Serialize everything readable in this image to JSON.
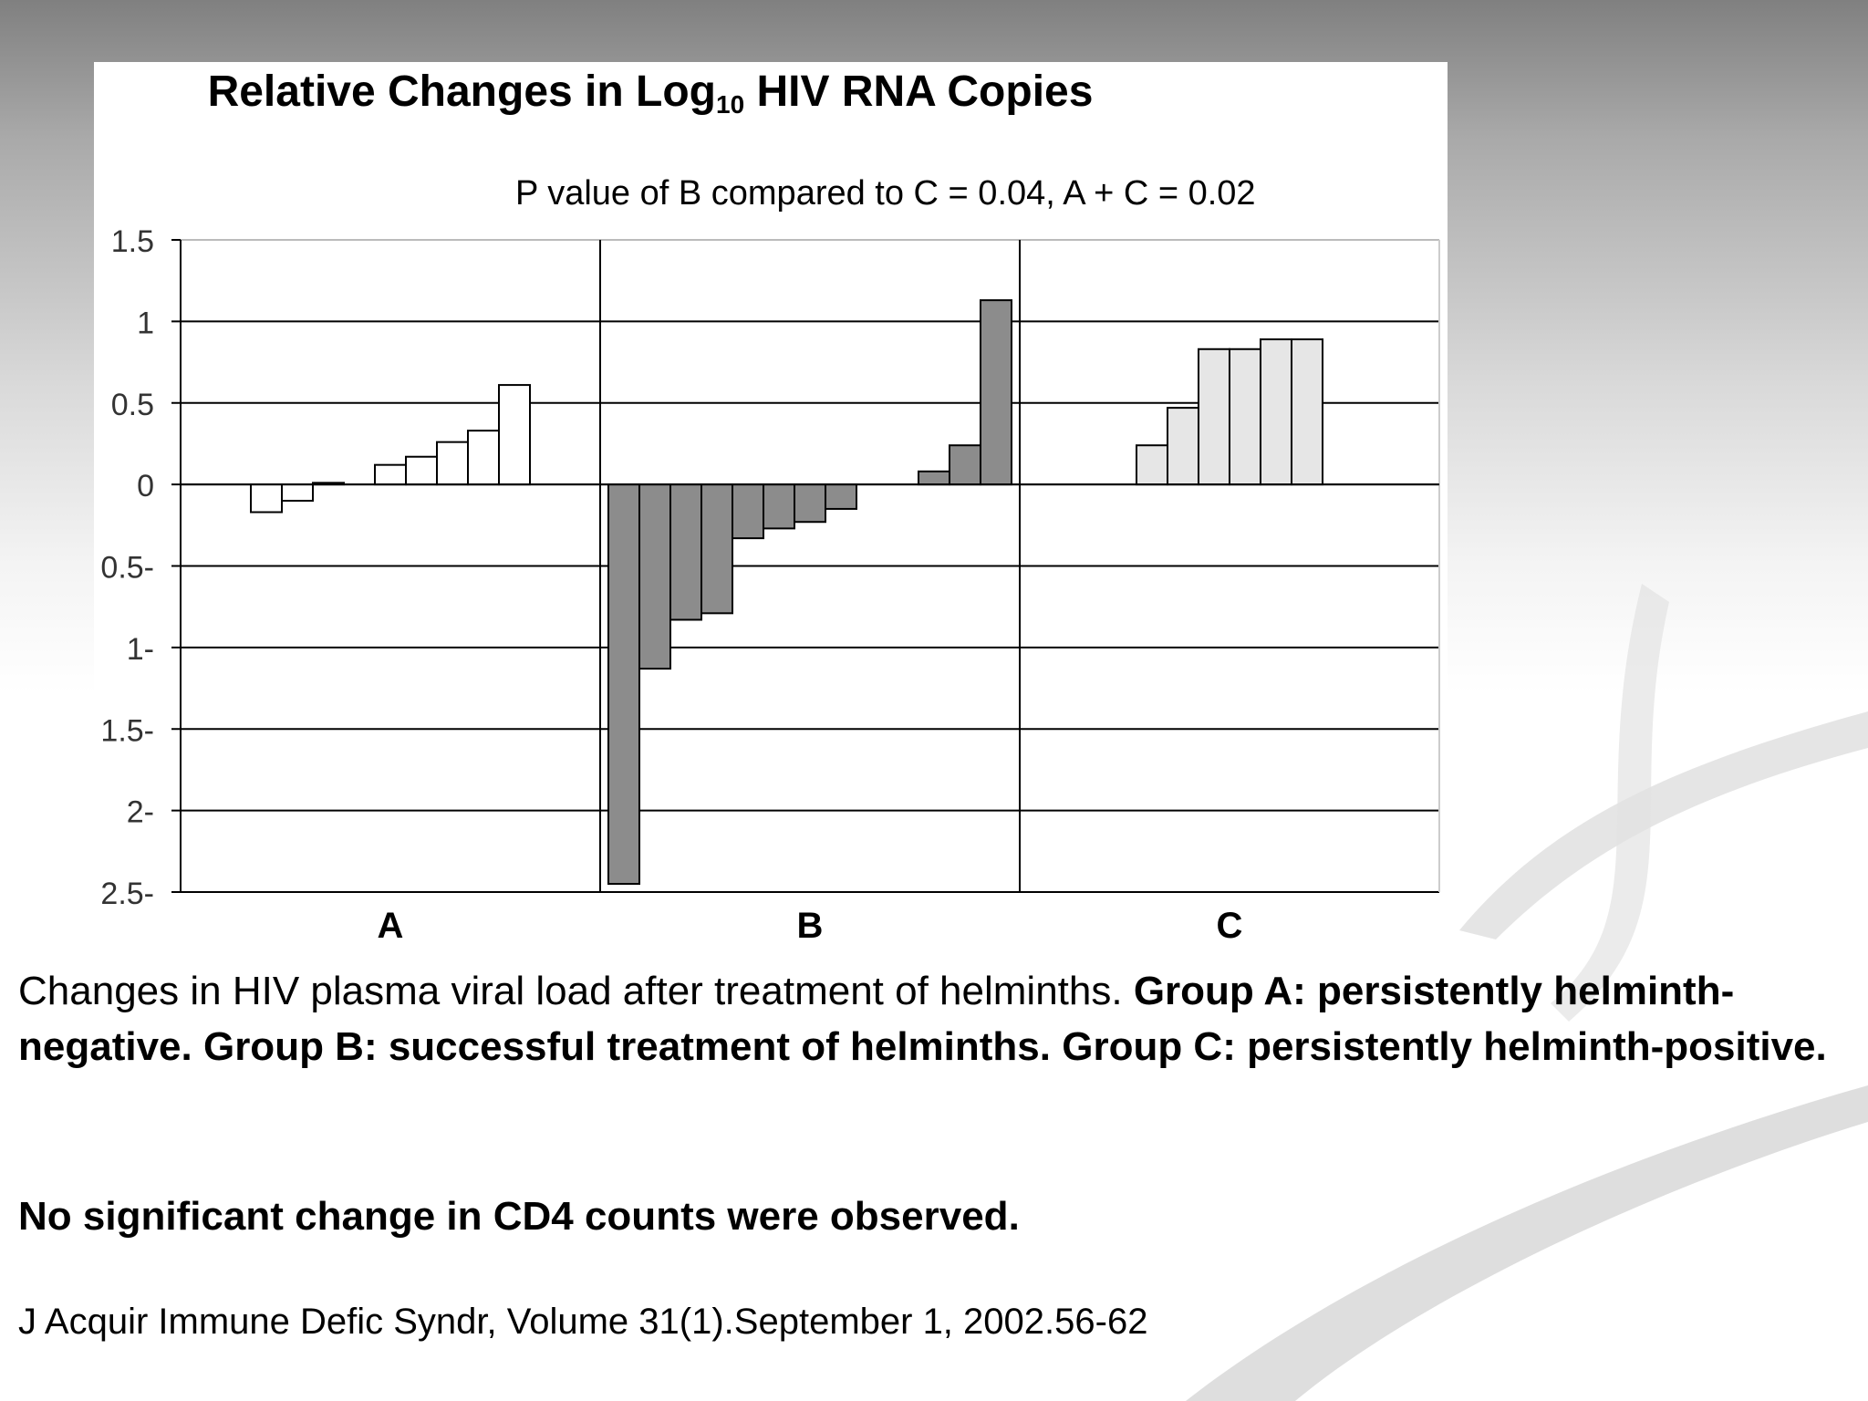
{
  "chart_data": {
    "type": "bar",
    "title": "Relative Changes in Log",
    "title_subscript": "10",
    "title_suffix": " HIV RNA Copies",
    "annotation": "P value of B compared to C = 0.04, A + C = 0.02",
    "ylim": [
      -2.5,
      1.5
    ],
    "y_ticks": [
      1.5,
      1,
      0.5,
      0,
      -0.5,
      -1,
      -1.5,
      -2,
      -2.5
    ],
    "y_tick_labels": [
      "1.5",
      "1",
      "0.5",
      "0",
      "0.5-",
      "1-",
      "1.5-",
      "2-",
      "2.5-"
    ],
    "grid": true,
    "groups": [
      {
        "label": "A",
        "fill": "#ffffff",
        "values": [
          -0.17,
          -0.1,
          0.01,
          0,
          0.12,
          0.17,
          0.26,
          0.33,
          0.61
        ]
      },
      {
        "label": "B",
        "fill": "#8c8c8c",
        "values": [
          -2.45,
          -1.13,
          -0.83,
          -0.79,
          -0.33,
          -0.27,
          -0.23,
          -0.15,
          0,
          0,
          0.08,
          0.24,
          1.13
        ]
      },
      {
        "label": "C",
        "fill": "#e6e6e6",
        "values": [
          0.24,
          0.47,
          0.83,
          0.83,
          0.89,
          0.89
        ]
      }
    ]
  },
  "caption": {
    "intro": "Changes in HIV plasma viral load after treatment of helminths. ",
    "groups_text": "Group A: persistently helminth-negative. Group B: successful treatment of helminths. Group C: persistently helminth-positive.",
    "cd4": "No significant change in CD4 counts were observed.",
    "reference": "J Acquir Immune Defic Syndr, Volume 31(1).September 1, 2002.56-62"
  },
  "colors": {
    "group_a_fill": "#ffffff",
    "group_b_fill": "#8c8c8c",
    "group_c_fill": "#e6e6e6",
    "text": "#000000"
  }
}
